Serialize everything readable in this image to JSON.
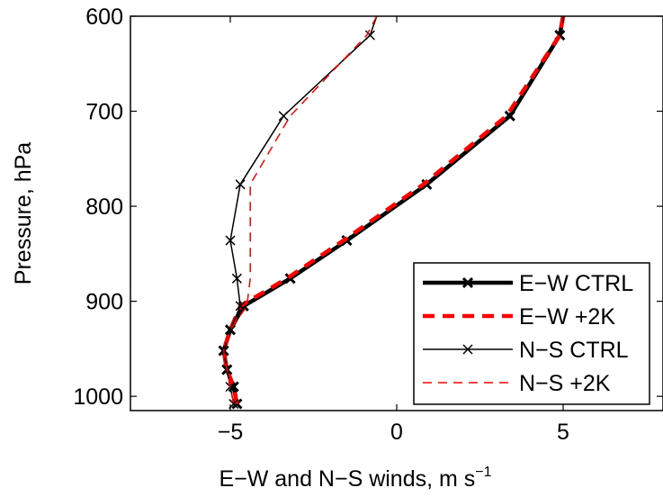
{
  "chart_data": {
    "type": "line",
    "title": "",
    "xlabel": "E−W and N−S winds, m s",
    "xlabel_superscript": "−1",
    "ylabel": "Pressure, hPa",
    "xlim": [
      -8,
      8
    ],
    "ylim": [
      600,
      1015
    ],
    "y_reversed": true,
    "grid": false,
    "legend_position": "bottom-right",
    "x_ticks": [
      -5,
      0,
      5
    ],
    "x_tick_labels": [
      "−5",
      "0",
      "5"
    ],
    "y_ticks": [
      600,
      700,
      800,
      900,
      1000
    ],
    "y_tick_labels": [
      "600",
      "700",
      "800",
      "900",
      "1000"
    ],
    "series": [
      {
        "name": "E−W CTRL",
        "color": "#000000",
        "style": "solid-thick-cross",
        "x": [
          5.0,
          4.9,
          3.4,
          0.9,
          -1.5,
          -3.2,
          -4.6,
          -5.0,
          -5.2,
          -5.1,
          -4.9,
          -4.8
        ],
        "y": [
          600,
          620,
          705,
          777,
          836,
          876,
          905,
          930,
          952,
          972,
          990,
          1008
        ]
      },
      {
        "name": "E−W +2K",
        "color": "#ff0000",
        "style": "dashed-thick",
        "x": [
          5.0,
          4.9,
          3.3,
          0.8,
          -1.6,
          -3.3,
          -4.7,
          -5.0,
          -5.2,
          -5.1,
          -4.9,
          -4.8
        ],
        "y": [
          600,
          620,
          705,
          777,
          836,
          876,
          905,
          930,
          952,
          972,
          990,
          1008
        ]
      },
      {
        "name": "N−S CTRL",
        "color": "#000000",
        "style": "solid-thin-cross",
        "x": [
          -0.6,
          -0.8,
          -3.4,
          -4.7,
          -5.0,
          -4.8,
          -4.7,
          -5.0,
          -5.2,
          -5.1,
          -5.0,
          -4.9
        ],
        "y": [
          600,
          620,
          705,
          777,
          836,
          876,
          905,
          930,
          952,
          972,
          990,
          1008
        ]
      },
      {
        "name": "N−S +2K",
        "color": "#ff0000",
        "style": "dashed-thin",
        "x": [
          -0.6,
          -0.9,
          -3.2,
          -4.4,
          -4.4,
          -4.4,
          -4.5,
          -5.0,
          -5.2,
          -5.1,
          -5.0,
          -4.9
        ],
        "y": [
          600,
          620,
          705,
          777,
          836,
          876,
          905,
          930,
          952,
          972,
          990,
          1008
        ]
      }
    ]
  }
}
